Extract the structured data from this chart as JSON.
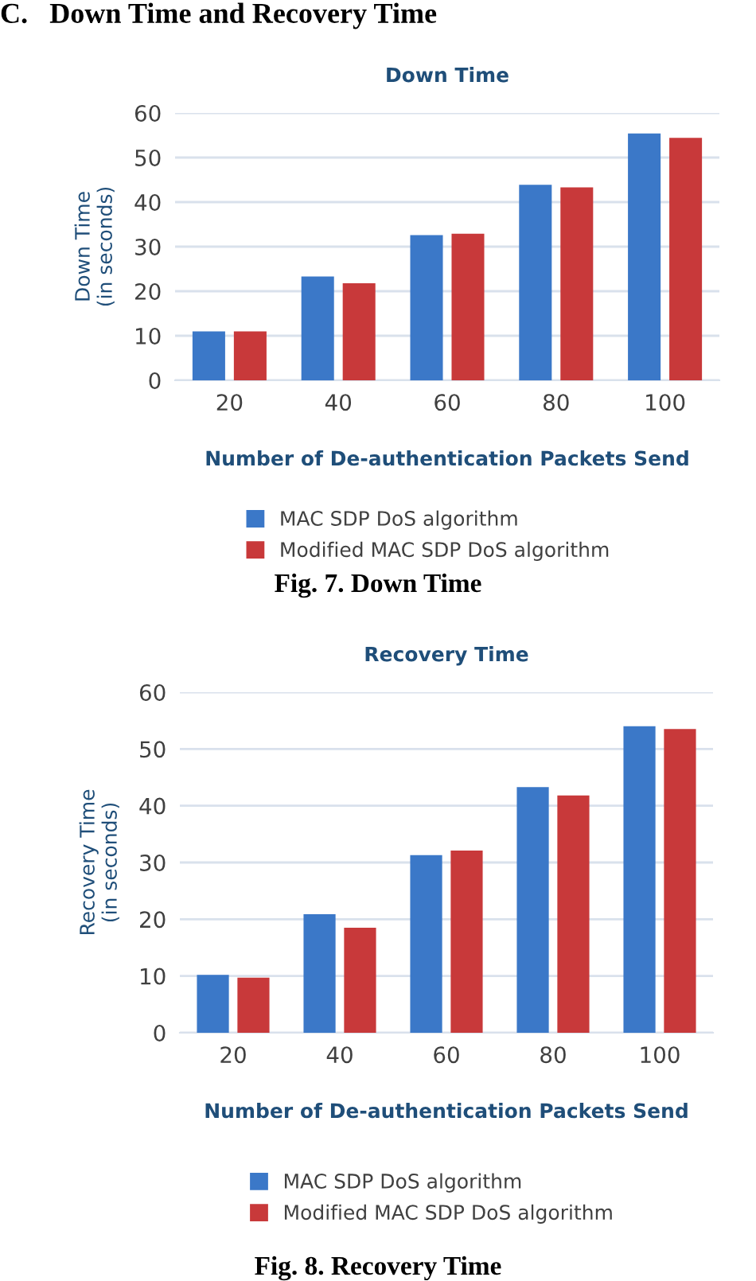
{
  "chart_data": [
    {
      "type": "bar",
      "title": "Down Time",
      "xlabel": "Number of De-authentication Packets Send",
      "ylabel": "Down Time\n(in seconds)",
      "annotations": [
        "C.   Down Time and Recovery Time",
        "Fig. 7. Down Time"
      ],
      "categories": [
        "20",
        "40",
        "60",
        "80",
        "100"
      ],
      "series": [
        {
          "name": "MAC SDP DoS algorithm",
          "color": "#3b78c8",
          "values": [
            11.0,
            23.3,
            32.6,
            43.9,
            55.4
          ]
        },
        {
          "name": "Modified MAC SDP DoS algorithm",
          "color": "#c8393a",
          "values": [
            11.0,
            21.8,
            32.9,
            43.3,
            54.4
          ]
        }
      ],
      "ylim": [
        0,
        60
      ],
      "yticks": [
        0,
        10,
        20,
        30,
        40,
        50,
        60
      ],
      "grid": "y",
      "legend": "bottom"
    },
    {
      "type": "bar",
      "title": "Recovery Time",
      "xlabel": "Number of De-authentication Packets Send",
      "ylabel": "Recovery Time\n(in seconds)",
      "annotations": [
        "Fig. 8. Recovery Time"
      ],
      "categories": [
        "20",
        "40",
        "60",
        "80",
        "100"
      ],
      "series": [
        {
          "name": "MAC SDP DoS algorithm",
          "color": "#3b78c8",
          "values": [
            10.2,
            20.9,
            31.3,
            43.3,
            54.0
          ]
        },
        {
          "name": "Modified MAC SDP DoS algorithm",
          "color": "#c8393a",
          "values": [
            9.7,
            18.5,
            32.1,
            41.8,
            53.5
          ]
        }
      ],
      "ylim": [
        0,
        60
      ],
      "yticks": [
        0,
        10,
        20,
        30,
        40,
        50,
        60
      ],
      "grid": "y",
      "legend": "bottom"
    }
  ]
}
